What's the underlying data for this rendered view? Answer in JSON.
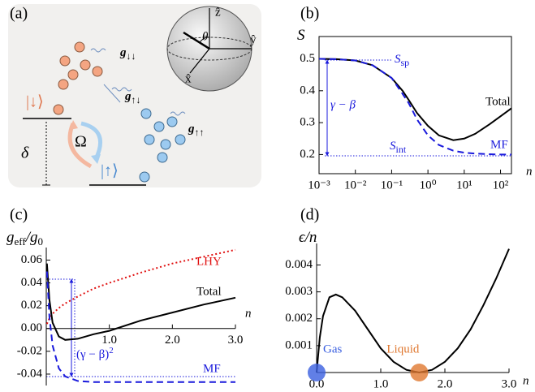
{
  "diagram": {
    "panel_label": "(a)",
    "couplings": [
      [
        "g",
        "↓↓"
      ],
      [
        "g",
        "↑↓"
      ],
      [
        "g",
        "↑↑"
      ]
    ],
    "states": [
      "|↓⟩",
      "|↑⟩"
    ],
    "rabi": "Ω",
    "detuning": "δ",
    "angle": "θ",
    "axes": [
      "ẑ",
      "ŷ",
      "x̂"
    ]
  },
  "chart_data": [
    {
      "type": "line",
      "panel_label": "(b)",
      "y_label": [
        "S"
      ],
      "x_label": "n",
      "log_x": true,
      "frame": true,
      "x": [
        0.001,
        0.003,
        0.01,
        0.03,
        0.1,
        0.2,
        0.3,
        0.5,
        1,
        2,
        5,
        10,
        20,
        50,
        100,
        200
      ],
      "series": [
        {
          "name": "Total",
          "color": "#000000",
          "style": "solid",
          "values": [
            0.5,
            0.499,
            0.495,
            0.48,
            0.44,
            0.4,
            0.37,
            0.33,
            0.29,
            0.26,
            0.245,
            0.25,
            0.265,
            0.295,
            0.32,
            0.345
          ]
        },
        {
          "name": "MF",
          "color": "#1a1adc",
          "style": "dashed",
          "values": [
            0.5,
            0.499,
            0.495,
            0.48,
            0.44,
            0.39,
            0.36,
            0.31,
            0.26,
            0.23,
            0.212,
            0.206,
            0.203,
            0.201,
            0.2,
            0.2
          ]
        }
      ],
      "annotations": [
        [
          "S",
          "sp"
        ],
        [
          "S",
          "int"
        ],
        [
          "γ − β"
        ]
      ],
      "xlim": [
        0.001,
        200
      ],
      "ylim": [
        0.14,
        0.57
      ],
      "xticks": [
        {
          "value": 0.001,
          "label": "10⁻³"
        },
        {
          "value": 0.01,
          "label": "10⁻²"
        },
        {
          "value": 0.1,
          "label": "10⁻¹"
        },
        {
          "value": 1,
          "label": "10⁰"
        },
        {
          "value": 10,
          "label": "10¹"
        },
        {
          "value": 100,
          "label": "10²"
        }
      ],
      "yticks": [
        0.2,
        0.3,
        0.4,
        0.5
      ]
    },
    {
      "type": "line",
      "panel_label": "(c)",
      "y_label": [
        "g",
        "eff",
        "/g",
        "0"
      ],
      "x_label": "n",
      "log_x": false,
      "frame": false,
      "x": [
        0.01,
        0.05,
        0.1,
        0.2,
        0.3,
        0.5,
        0.75,
        1,
        1.5,
        2,
        2.5,
        3
      ],
      "series": [
        {
          "name": "LHY",
          "color": "#e01010",
          "style": "dotted",
          "values": [
            0.004,
            0.009,
            0.013,
            0.018,
            0.022,
            0.028,
            0.035,
            0.04,
            0.049,
            0.057,
            0.063,
            0.069
          ]
        },
        {
          "name": "Total",
          "color": "#000000",
          "style": "solid",
          "values": [
            0.057,
            0.025,
            0.005,
            -0.007,
            -0.01,
            -0.009,
            -0.005,
            -0.002,
            0.007,
            0.014,
            0.021,
            0.027
          ]
        },
        {
          "name": "MF",
          "color": "#1a1adc",
          "style": "dashed",
          "values": [
            0.05,
            0.01,
            -0.015,
            -0.035,
            -0.042,
            -0.046,
            -0.047,
            -0.047,
            -0.047,
            -0.047,
            -0.047,
            -0.047
          ]
        }
      ],
      "annotations": [
        [
          "(γ − β)",
          "2"
        ]
      ],
      "xlim": [
        0,
        3
      ],
      "ylim": [
        -0.05,
        0.071
      ],
      "xticks": [
        {
          "value": 1,
          "label": "1.0"
        },
        {
          "value": 2,
          "label": "2.0"
        },
        {
          "value": 3,
          "label": "3.0"
        }
      ],
      "yticks": [
        {
          "value": -0.04,
          "label": "-0.04"
        },
        {
          "value": -0.02,
          "label": "-0.02"
        },
        {
          "value": 0,
          "label": "0.00"
        },
        {
          "value": 0.02,
          "label": "0.02"
        },
        {
          "value": 0.04,
          "label": "0.04"
        },
        {
          "value": 0.06,
          "label": "0.06"
        }
      ]
    },
    {
      "type": "line",
      "panel_label": "(d)",
      "y_label": [
        "ϵ/n"
      ],
      "x_label": "n",
      "log_x": false,
      "frame": false,
      "x": [
        0,
        0.05,
        0.1,
        0.2,
        0.3,
        0.4,
        0.6,
        0.8,
        1,
        1.2,
        1.4,
        1.6,
        1.8,
        2,
        2.2,
        2.4,
        2.6,
        2.8,
        3
      ],
      "series": [
        {
          "name": null,
          "color": "#000000",
          "style": "solid",
          "values": [
            0,
            0.0013,
            0.0021,
            0.0028,
            0.0029,
            0.0028,
            0.0023,
            0.0016,
            0.0009,
            0.0004,
            0.0001,
            0,
            0.0001,
            0.0004,
            0.0009,
            0.0016,
            0.0025,
            0.0035,
            0.0046
          ]
        }
      ],
      "points": [
        {
          "name": "Gas",
          "x": 0,
          "y": 0,
          "color": "#3a5fe0"
        },
        {
          "name": "Liquid",
          "x": 1.6,
          "y": 0,
          "color": "#e07830"
        }
      ],
      "xlim": [
        0,
        3
      ],
      "ylim": [
        0,
        0.0048
      ],
      "xticks": [
        {
          "value": 0,
          "label": "0.0"
        },
        {
          "value": 1,
          "label": "1.0"
        },
        {
          "value": 2,
          "label": "2.0"
        },
        {
          "value": 3,
          "label": "3.0"
        }
      ],
      "yticks": [
        0.001,
        0.002,
        0.003,
        0.004
      ]
    }
  ]
}
